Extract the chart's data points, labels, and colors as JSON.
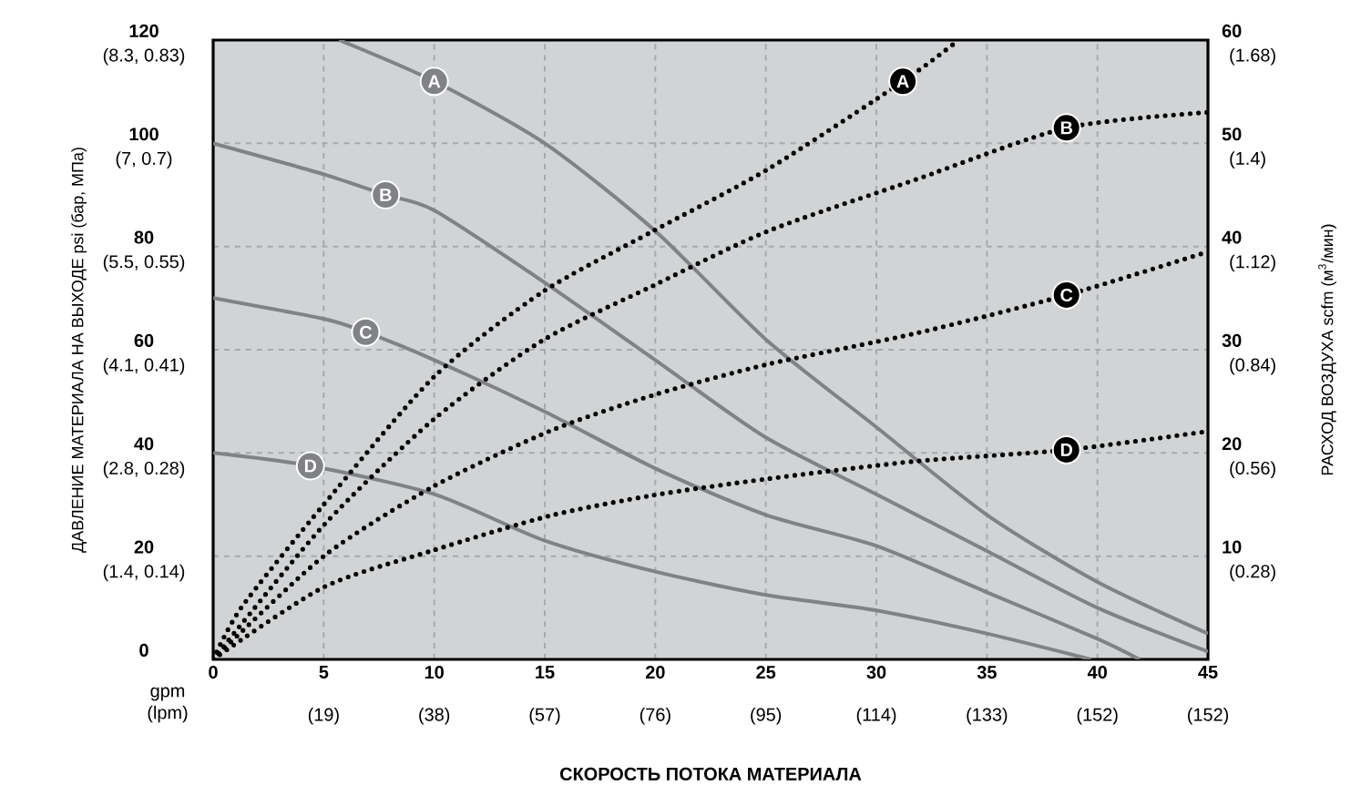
{
  "chart_data": {
    "type": "line",
    "xlabel": "СКОРОСТЬ ПОТОКА МАТЕРИАЛА",
    "ylabel": "ДАВЛЕНИЕ МАТЕРИАЛА НА ВЫХОДЕ psi (бар, МПа)",
    "y2label": "РАСХОД ВОЗДУХА scfm (м$^{3}$/мин)",
    "annotations": [
      "gpm (lpm)",
      "(19)",
      "(38)",
      "(57)",
      "(76)",
      "(95)",
      "(114)",
      "(133)",
      "(152)",
      "(152)",
      "(1.4, 0.14)",
      "(2.8, 0.28)",
      "(4.1, 0.41)",
      "(5.5, 0.55)",
      "(7, 0.7)",
      "(8.3, 0.83)",
      "(0.28)",
      "(0.56)",
      "(0.84)",
      "(1.12)",
      "(1.4)",
      "(1.68)"
    ],
    "xlim": [
      0,
      45
    ],
    "xticks": [
      0,
      5,
      10,
      15,
      20,
      25,
      30,
      35,
      40,
      45
    ],
    "ylim": [
      0,
      120
    ],
    "yticks": [
      0,
      20,
      40,
      60,
      80,
      100,
      120
    ],
    "y2lim": [
      0,
      60
    ],
    "y2ticks": [
      10,
      20,
      30,
      40,
      50,
      60
    ],
    "grid": true,
    "series": [
      {
        "name": "A",
        "color": "#808285",
        "line_style": "solid",
        "x": [
          5.7,
          10,
          15,
          20,
          25,
          30,
          35,
          40,
          45
        ],
        "values": [
          120,
          112,
          100,
          83,
          62,
          45,
          28,
          15,
          5
        ]
      },
      {
        "name": "B",
        "color": "#808285",
        "line_style": "solid",
        "x": [
          0,
          5,
          7.8,
          10,
          15,
          20,
          25,
          30,
          35,
          40,
          45
        ],
        "values": [
          100,
          94,
          90,
          87,
          73,
          58,
          43,
          32,
          21,
          10,
          1.5
        ]
      },
      {
        "name": "C",
        "color": "#808285",
        "line_style": "solid",
        "x": [
          0,
          5,
          6.9,
          10,
          15,
          20,
          25,
          30,
          35,
          40,
          41.9
        ],
        "values": [
          70,
          66,
          63.4,
          58,
          48,
          37,
          28,
          22,
          13,
          4,
          0
        ]
      },
      {
        "name": "D",
        "color": "#808285",
        "line_style": "solid",
        "x": [
          0,
          4.4,
          10,
          15,
          20,
          25,
          30,
          35,
          39.7
        ],
        "values": [
          40,
          37.5,
          32,
          23,
          17,
          12.5,
          9.5,
          5,
          0
        ]
      },
      {
        "name": "A",
        "color": "#000000",
        "line_style": "dotted",
        "axis": "y2",
        "x": [
          0,
          1.3,
          5,
          10,
          14.9,
          19.9,
          25.1,
          31.2,
          33.6
        ],
        "values": [
          0,
          5.1,
          15,
          27.4,
          35.6,
          41.5,
          47.5,
          56,
          59.8
        ]
      },
      {
        "name": "B",
        "color": "#000000",
        "line_style": "dotted",
        "axis": "y2",
        "x": [
          0,
          5,
          10,
          14.9,
          19.9,
          25.1,
          31.8,
          38.6,
          45
        ],
        "values": [
          0,
          13,
          23.3,
          30.9,
          36.2,
          41.5,
          46.5,
          51.5,
          53
        ]
      },
      {
        "name": "C",
        "color": "#000000",
        "line_style": "dotted",
        "axis": "y2",
        "x": [
          0,
          5,
          10,
          15.2,
          19.9,
          25.1,
          31.8,
          38.6,
          45
        ],
        "values": [
          0,
          10,
          16.8,
          22.1,
          25.6,
          28.6,
          31.6,
          35.3,
          39.5
        ]
      },
      {
        "name": "D",
        "color": "#000000",
        "line_style": "dotted",
        "axis": "y2",
        "x": [
          0,
          5,
          10,
          15.2,
          19.9,
          25.1,
          31.8,
          38.6,
          45
        ],
        "values": [
          0,
          7,
          10.6,
          13.9,
          15.9,
          17.5,
          19.2,
          20.3,
          22.1
        ]
      }
    ]
  }
}
